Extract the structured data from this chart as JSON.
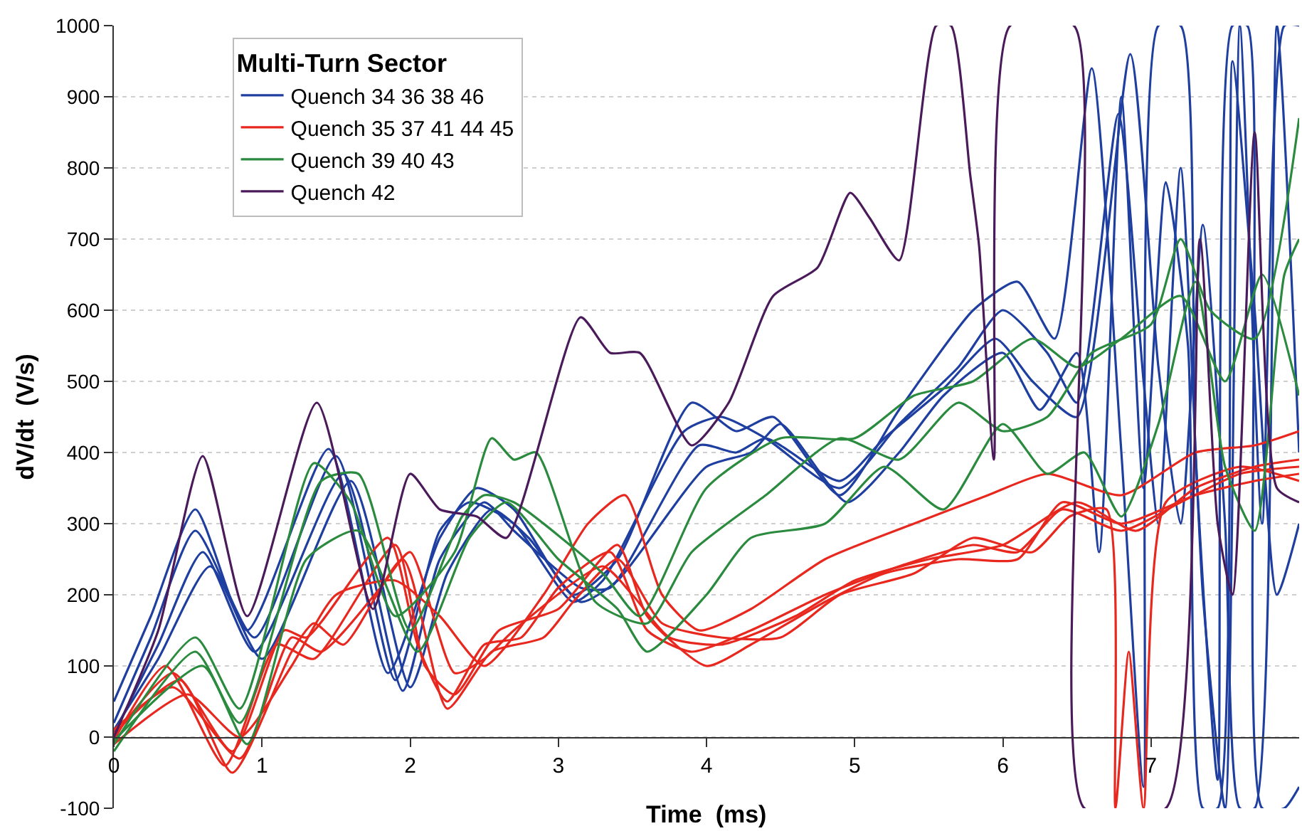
{
  "chart_data": {
    "type": "line",
    "xlabel": "Time  (ms)",
    "ylabel": "dV/dt  (V/s)",
    "legend_title": "Multi-Turn Sector",
    "legend": "top left",
    "grid": "y",
    "marker": "none",
    "line_style": "solid",
    "xlim": [
      0,
      8
    ],
    "xticks": [
      0,
      1,
      2,
      3,
      4,
      5,
      6,
      7
    ],
    "ylim": [
      -100,
      1000
    ],
    "yticks": [
      -100,
      0,
      100,
      200,
      300,
      400,
      500,
      600,
      700,
      800,
      900,
      1000
    ],
    "series": [
      {
        "name": "Quench 34 36 38 46",
        "color": "#1f3fa0",
        "x": [
          0,
          0.25,
          0.55,
          0.9,
          1.45,
          1.85,
          2.2,
          2.45,
          2.7,
          3.1,
          3.4,
          3.9,
          4.2,
          4.45,
          4.9,
          5.3,
          5.8,
          6.1,
          6.35,
          6.6,
          6.8,
          6.95,
          7.05,
          7.2,
          7.3,
          7.45,
          7.55,
          7.65,
          7.75,
          7.9,
          8
        ],
        "values": [
          50,
          170,
          320,
          150,
          405,
          90,
          280,
          350,
          320,
          200,
          250,
          470,
          430,
          450,
          340,
          460,
          600,
          640,
          560,
          940,
          400,
          -70,
          1000,
          1000,
          400,
          -60,
          1000,
          1000,
          -100,
          -100,
          -70
        ]
      },
      {
        "color": "#1f3fa0",
        "x": [
          0,
          0.25,
          0.55,
          0.95,
          1.5,
          1.9,
          2.2,
          2.4,
          2.7,
          3.1,
          3.3,
          3.85,
          4.1,
          4.4,
          4.9,
          5.3,
          5.7,
          6.0,
          6.3,
          6.5,
          6.78,
          6.95,
          7.05,
          7.2,
          7.35,
          7.5,
          7.6,
          7.75,
          7.9,
          8
        ],
        "values": [
          20,
          140,
          290,
          140,
          395,
          80,
          290,
          330,
          300,
          190,
          220,
          430,
          450,
          420,
          350,
          440,
          520,
          600,
          540,
          470,
          876,
          500,
          300,
          800,
          200,
          -100,
          1000,
          300,
          1000,
          1000
        ]
      },
      {
        "color": "#1f3fa0",
        "x": [
          0,
          0.3,
          0.6,
          0.95,
          1.55,
          1.95,
          2.2,
          2.5,
          2.7,
          3.15,
          3.35,
          3.95,
          4.2,
          4.4,
          4.9,
          5.2,
          5.6,
          5.95,
          6.2,
          6.5,
          6.86,
          7.05,
          7.2,
          7.35,
          7.5,
          7.6,
          7.7,
          7.85,
          8
        ],
        "values": [
          5,
          130,
          260,
          120,
          370,
          65,
          250,
          330,
          290,
          210,
          210,
          410,
          400,
          420,
          360,
          420,
          490,
          560,
          500,
          450,
          960,
          520,
          300,
          720,
          300,
          -100,
          -100,
          1000,
          400
        ]
      },
      {
        "color": "#1f3fa0",
        "x": [
          0,
          0.3,
          0.65,
          1.0,
          1.6,
          2.0,
          2.25,
          2.55,
          2.8,
          3.15,
          3.4,
          4.0,
          4.3,
          4.5,
          4.95,
          5.3,
          5.6,
          6.0,
          6.25,
          6.5,
          6.65,
          6.8,
          6.95,
          7.1,
          7.25,
          7.35,
          7.45,
          7.55,
          7.7,
          7.85,
          8
        ],
        "values": [
          10,
          110,
          240,
          110,
          360,
          70,
          230,
          320,
          280,
          190,
          220,
          380,
          400,
          440,
          330,
          400,
          480,
          540,
          460,
          540,
          260,
          900,
          350,
          780,
          550,
          -100,
          -100,
          950,
          600,
          200,
          300
        ]
      },
      {
        "name": "Quench 35 37 41 44 45",
        "color": "#e8281e",
        "x": [
          0,
          0.4,
          0.8,
          1.15,
          1.3,
          1.85,
          2.05,
          2.25,
          2.5,
          2.75,
          3.0,
          3.35,
          3.6,
          3.9,
          4.3,
          4.8,
          5.3,
          5.8,
          6.1,
          6.4,
          6.8,
          7.2,
          7.6,
          8
        ],
        "values": [
          0,
          90,
          -20,
          150,
          140,
          280,
          130,
          50,
          130,
          140,
          210,
          260,
          150,
          120,
          150,
          200,
          240,
          270,
          260,
          320,
          290,
          330,
          370,
          380
        ]
      },
      {
        "color": "#e8281e",
        "x": [
          0,
          0.35,
          0.75,
          1.1,
          1.35,
          1.9,
          2.1,
          2.3,
          2.6,
          3.0,
          3.4,
          3.6,
          4.0,
          4.3,
          4.8,
          5.2,
          5.7,
          6.1,
          6.4,
          6.8,
          7.3,
          7.7,
          8
        ],
        "values": [
          -5,
          100,
          -40,
          130,
          110,
          270,
          100,
          60,
          150,
          180,
          270,
          170,
          100,
          130,
          190,
          230,
          250,
          250,
          330,
          300,
          340,
          360,
          370
        ]
      },
      {
        "color": "#e8281e",
        "x": [
          0,
          0.45,
          0.8,
          1.2,
          1.35,
          1.55,
          1.95,
          2.25,
          2.55,
          2.9,
          3.1,
          3.4,
          3.7,
          4.1,
          4.5,
          4.9,
          5.4,
          5.8,
          6.2,
          6.45,
          6.7,
          6.76,
          6.85,
          6.95,
          7.1,
          7.6,
          8
        ],
        "values": [
          5,
          80,
          -50,
          120,
          160,
          130,
          250,
          40,
          120,
          140,
          190,
          250,
          160,
          140,
          140,
          200,
          230,
          280,
          260,
          310,
          320,
          -100,
          120,
          -100,
          330,
          380,
          360
        ]
      },
      {
        "color": "#e8281e",
        "x": [
          0,
          0.4,
          0.85,
          1.2,
          1.4,
          1.8,
          2.0,
          2.3,
          2.5,
          2.7,
          3.3,
          3.5,
          3.75,
          4.1,
          4.6,
          5.0,
          5.5,
          6.0,
          6.5,
          6.9,
          7.3,
          7.7,
          8
        ],
        "values": [
          10,
          70,
          -30,
          140,
          120,
          210,
          260,
          90,
          110,
          150,
          240,
          200,
          140,
          130,
          170,
          220,
          250,
          270,
          330,
          290,
          350,
          380,
          390
        ]
      },
      {
        "color": "#e8281e",
        "x": [
          0,
          0.5,
          0.85,
          1.2,
          1.5,
          1.9,
          2.2,
          2.5,
          2.9,
          3.2,
          3.45,
          3.7,
          3.95,
          4.3,
          4.8,
          5.4,
          5.9,
          6.3,
          6.8,
          7.3,
          7.7,
          8
        ],
        "values": [
          -10,
          60,
          0,
          100,
          200,
          220,
          170,
          100,
          200,
          300,
          340,
          200,
          150,
          180,
          250,
          300,
          340,
          370,
          340,
          400,
          410,
          430
        ]
      },
      {
        "name": "Quench 39 40 43",
        "color": "#2a8a3e",
        "x": [
          0,
          0.55,
          0.85,
          1.35,
          1.6,
          1.9,
          2.3,
          2.55,
          2.7,
          2.85,
          3.25,
          3.6,
          3.9,
          4.4,
          4.9,
          5.3,
          5.7,
          6.0,
          6.3,
          6.6,
          7.0,
          7.2,
          7.4,
          7.7,
          8
        ],
        "values": [
          -10,
          140,
          40,
          385,
          330,
          170,
          260,
          420,
          390,
          400,
          190,
          160,
          260,
          340,
          420,
          390,
          470,
          430,
          450,
          540,
          580,
          700,
          600,
          560,
          870
        ]
      },
      {
        "color": "#2a8a3e",
        "x": [
          0,
          0.55,
          0.85,
          1.4,
          1.65,
          2.0,
          2.35,
          2.5,
          2.7,
          3.3,
          3.55,
          4.0,
          4.5,
          5.0,
          5.4,
          5.8,
          6.2,
          6.5,
          6.8,
          7.2,
          7.5,
          7.75,
          8
        ],
        "values": [
          -20,
          120,
          20,
          360,
          370,
          150,
          310,
          340,
          330,
          230,
          170,
          350,
          420,
          420,
          480,
          500,
          560,
          520,
          560,
          620,
          500,
          650,
          480
        ]
      },
      {
        "color": "#2a8a3e",
        "x": [
          0,
          0.6,
          0.9,
          1.3,
          1.65,
          2.05,
          2.4,
          2.65,
          3.0,
          3.4,
          3.6,
          4.0,
          4.3,
          4.8,
          5.2,
          5.6,
          6.0,
          6.3,
          6.55,
          6.8,
          7.05,
          7.3,
          7.5,
          7.7,
          7.9,
          8
        ],
        "values": [
          -5,
          100,
          -10,
          250,
          290,
          120,
          280,
          330,
          250,
          180,
          120,
          200,
          280,
          300,
          380,
          320,
          440,
          370,
          400,
          310,
          440,
          640,
          380,
          290,
          650,
          700
        ]
      },
      {
        "name": "Quench 42",
        "color": "#4a1a5a",
        "x": [
          0,
          0.3,
          0.6,
          0.9,
          1.37,
          1.75,
          2.0,
          2.2,
          2.45,
          2.65,
          3.15,
          3.35,
          3.55,
          3.9,
          4.15,
          4.45,
          4.75,
          4.97,
          5.1,
          5.3,
          5.55,
          5.65,
          5.78,
          5.84,
          5.94,
          6.05,
          6.48,
          6.55,
          7.1,
          7.33,
          7.45,
          7.55,
          7.7,
          7.85,
          8
        ],
        "values": [
          0,
          150,
          395,
          170,
          470,
          180,
          370,
          320,
          310,
          280,
          590,
          540,
          540,
          410,
          470,
          620,
          660,
          765,
          730,
          670,
          1000,
          1000,
          790,
          690,
          390,
          1000,
          1000,
          -100,
          -100,
          700,
          300,
          200,
          850,
          350,
          330
        ]
      }
    ]
  }
}
